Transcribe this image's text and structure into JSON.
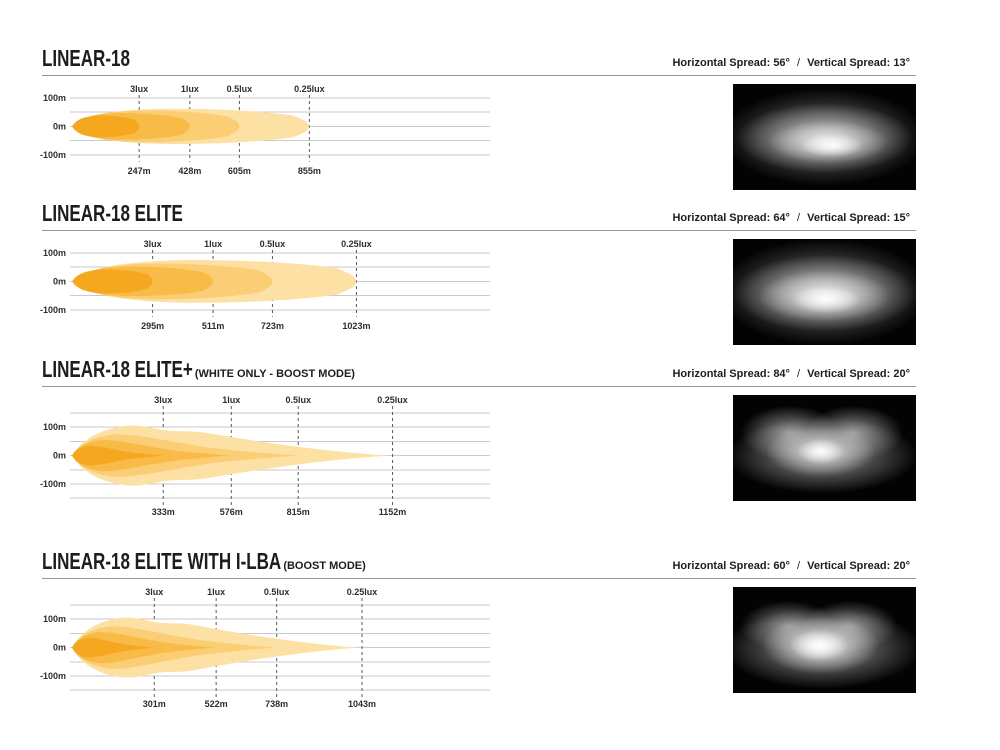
{
  "shared": {
    "y_ticks": [
      "100m",
      "0m",
      "-100m"
    ],
    "spread_h_label": "Horizontal Spread:",
    "spread_v_label": "Vertical Spread:",
    "spread_separator": "/"
  },
  "colors": {
    "contour_levels_inner_to_outer": [
      "#F6A720",
      "#F9BB47",
      "#FBCE75",
      "#FDE1A4"
    ],
    "gridline": "#C9CACB",
    "marker_dash": "#58595B",
    "divider": "#949698",
    "text": "#231F20",
    "photo_background": "#030303"
  },
  "sections": [
    {
      "title": "LINEAR-18",
      "subtitle": "",
      "horizontal_spread": "56°",
      "vertical_spread": "13°",
      "photo_style": "beam-flat-ellipse"
    },
    {
      "title": "LINEAR-18 ELITE",
      "subtitle": "",
      "horizontal_spread": "64°",
      "vertical_spread": "15°",
      "photo_style": "beam-wide-ellipse"
    },
    {
      "title": "LINEAR-18 ELITE+",
      "subtitle": "(WHITE ONLY - BOOST MODE)",
      "horizontal_spread": "84°",
      "vertical_spread": "20°",
      "photo_style": "beam-bilobe"
    },
    {
      "title": "LINEAR-18 ELITE WITH I-LBA",
      "subtitle": "(BOOST MODE)",
      "horizontal_spread": "60°",
      "vertical_spread": "20°",
      "photo_style": "beam-bilobe-bright"
    }
  ],
  "chart_data": [
    {
      "type": "area",
      "title": "LINEAR-18 isolux beam pattern",
      "profile": "round",
      "x_range_m": [
        0,
        1500
      ],
      "y_range_m": [
        -125,
        125
      ],
      "y_ticks": [
        "100m",
        "0m",
        "-100m"
      ],
      "contours": [
        {
          "lux": "3lux",
          "distance_m": 247,
          "distance_label": "247m",
          "half_width_m": 38
        },
        {
          "lux": "1lux",
          "distance_m": 428,
          "distance_label": "428m",
          "half_width_m": 47
        },
        {
          "lux": "0.5lux",
          "distance_m": 605,
          "distance_label": "605m",
          "half_width_m": 56
        },
        {
          "lux": "0.25lux",
          "distance_m": 855,
          "distance_label": "855m",
          "half_width_m": 62
        }
      ]
    },
    {
      "type": "area",
      "title": "LINEAR-18 ELITE isolux beam pattern",
      "profile": "round",
      "x_range_m": [
        0,
        1500
      ],
      "y_range_m": [
        -125,
        125
      ],
      "y_ticks": [
        "100m",
        "0m",
        "-100m"
      ],
      "contours": [
        {
          "lux": "3lux",
          "distance_m": 295,
          "distance_label": "295m",
          "half_width_m": 42
        },
        {
          "lux": "1lux",
          "distance_m": 511,
          "distance_label": "511m",
          "half_width_m": 52
        },
        {
          "lux": "0.5lux",
          "distance_m": 723,
          "distance_label": "723m",
          "half_width_m": 63
        },
        {
          "lux": "0.25lux",
          "distance_m": 1023,
          "distance_label": "1023m",
          "half_width_m": 75
        }
      ]
    },
    {
      "type": "area",
      "title": "LINEAR-18 ELITE+ (WHITE ONLY - BOOST MODE) isolux beam pattern",
      "profile": "pointed",
      "x_range_m": [
        0,
        1500
      ],
      "y_range_m": [
        -160,
        160
      ],
      "y_ticks": [
        "100m",
        "0m",
        "-100m"
      ],
      "contours": [
        {
          "lux": "3lux",
          "distance_m": 333,
          "distance_label": "333m",
          "half_width_m": 35
        },
        {
          "lux": "1lux",
          "distance_m": 576,
          "distance_label": "576m",
          "half_width_m": 55
        },
        {
          "lux": "0.5lux",
          "distance_m": 815,
          "distance_label": "815m",
          "half_width_m": 75
        },
        {
          "lux": "0.25lux",
          "distance_m": 1152,
          "distance_label": "1152m",
          "half_width_m": 105
        }
      ]
    },
    {
      "type": "area",
      "title": "LINEAR-18 ELITE WITH I-LBA (BOOST MODE) isolux beam pattern",
      "profile": "pointed",
      "x_range_m": [
        0,
        1500
      ],
      "y_range_m": [
        -160,
        160
      ],
      "y_ticks": [
        "100m",
        "0m",
        "-100m"
      ],
      "contours": [
        {
          "lux": "3lux",
          "distance_m": 301,
          "distance_label": "301m",
          "half_width_m": 35
        },
        {
          "lux": "1lux",
          "distance_m": 522,
          "distance_label": "522m",
          "half_width_m": 55
        },
        {
          "lux": "0.5lux",
          "distance_m": 738,
          "distance_label": "738m",
          "half_width_m": 75
        },
        {
          "lux": "0.25lux",
          "distance_m": 1043,
          "distance_label": "1043m",
          "half_width_m": 105
        }
      ]
    }
  ]
}
